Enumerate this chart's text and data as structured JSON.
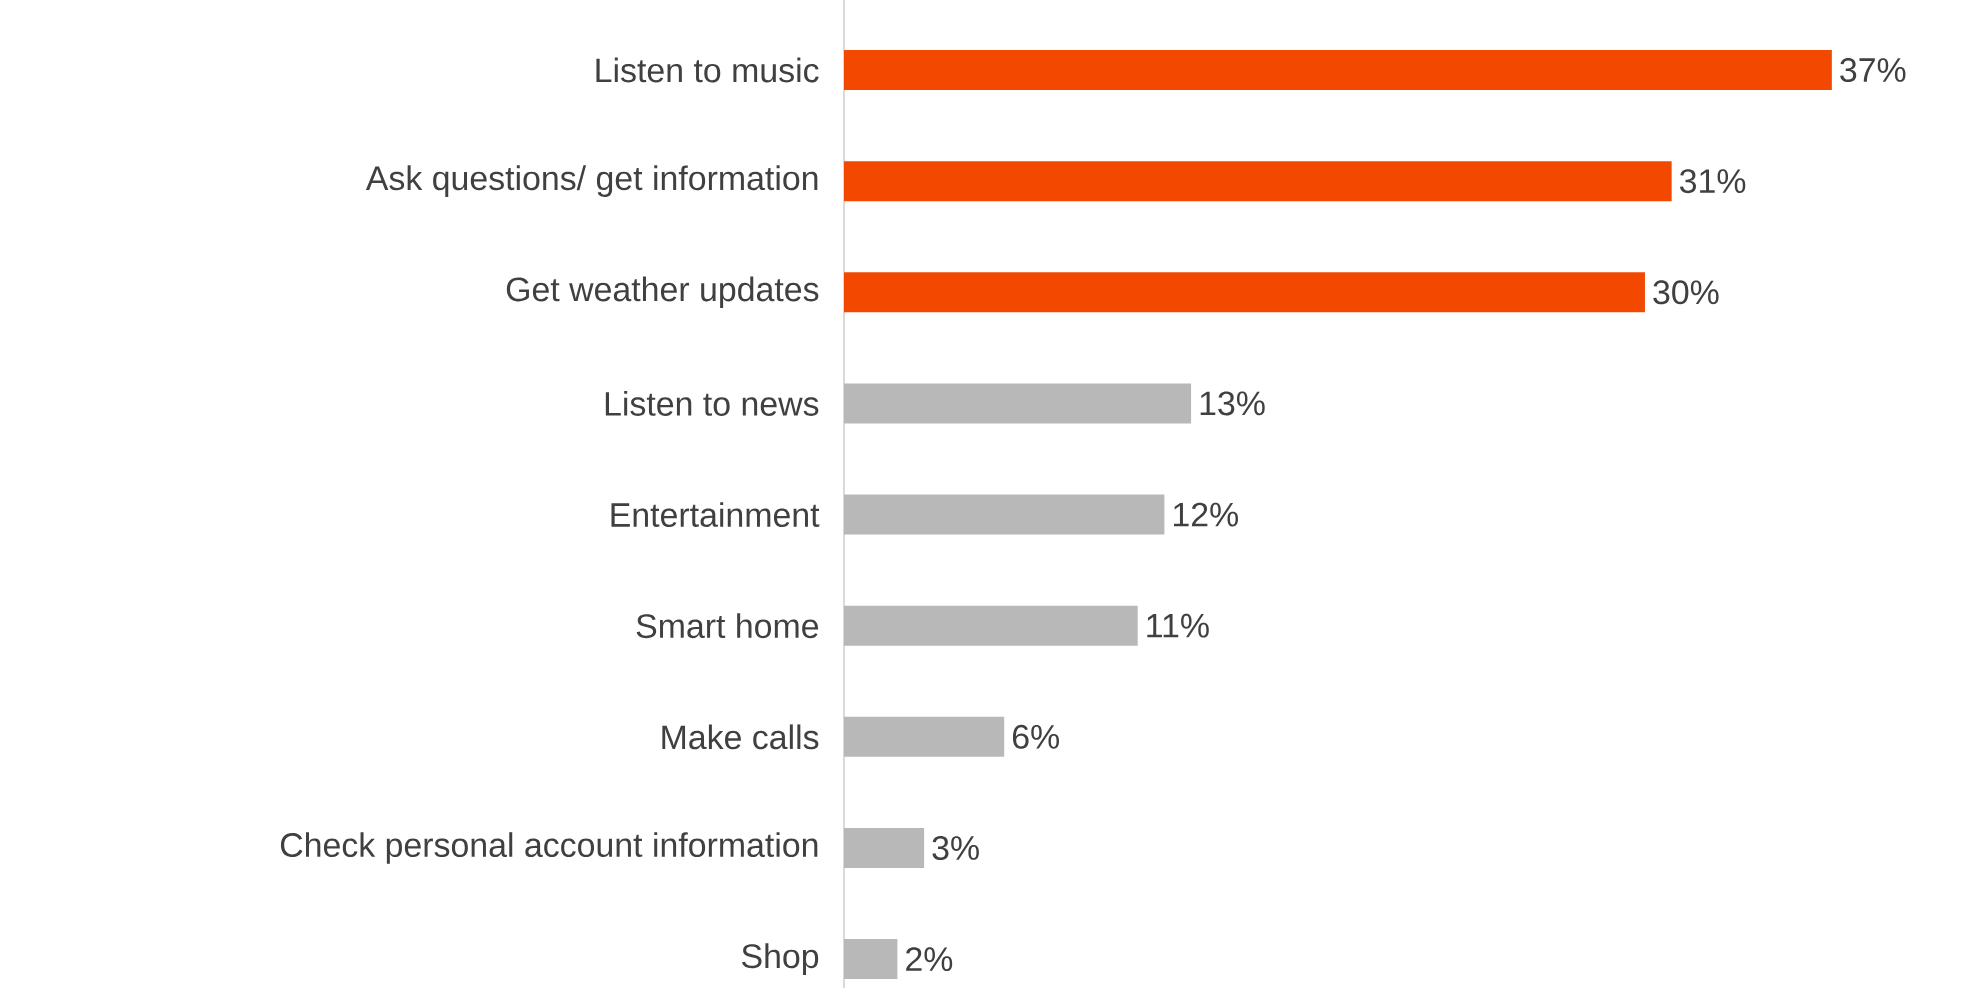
{
  "chart_data": {
    "type": "bar",
    "orientation": "horizontal",
    "categories": [
      "Listen to music",
      "Ask questions/ get information",
      "Get weather updates",
      "Listen to news",
      "Entertainment",
      "Smart home",
      "Make calls",
      "Check personal account information",
      "Shop"
    ],
    "values": [
      37,
      31,
      30,
      13,
      12,
      11,
      6,
      3,
      2
    ],
    "value_labels": [
      "37%",
      "31%",
      "30%",
      "13%",
      "12%",
      "11%",
      "6%",
      "3%",
      "2%"
    ],
    "colors": [
      "#f24800",
      "#f24800",
      "#f24800",
      "#b8b8b8",
      "#b8b8b8",
      "#b8b8b8",
      "#b8b8b8",
      "#b8b8b8",
      "#b8b8b8"
    ]
  }
}
